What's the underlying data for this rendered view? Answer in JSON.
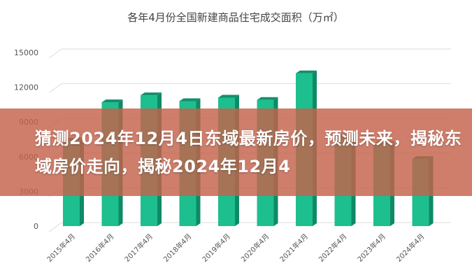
{
  "chart_data": {
    "type": "bar",
    "title": "各年4月份全国新建商品住宅成交面积（万㎡）",
    "categories": [
      "2015年4月",
      "2016年4月",
      "2017年4月",
      "2018年4月",
      "2019年4月",
      "2020年4月",
      "2021年4月",
      "2022年4月",
      "2023年4月",
      "2024年4月"
    ],
    "values": [
      7400,
      10700,
      11300,
      10800,
      11100,
      10900,
      13200,
      7700,
      7100,
      5800
    ],
    "yticks": [
      "0",
      "3000",
      "6000",
      "9000",
      "12000",
      "15000"
    ],
    "ylim": [
      0,
      15000
    ],
    "grid": true,
    "bar_color": "#1dbf8f",
    "bar_side_color": "#0f8a66"
  },
  "overlay": {
    "headline": "猜测2024年12月4日东域最新房价，预测未来，揭秘东域房价走向，揭秘2024年12月4",
    "color": "#c4624a"
  }
}
